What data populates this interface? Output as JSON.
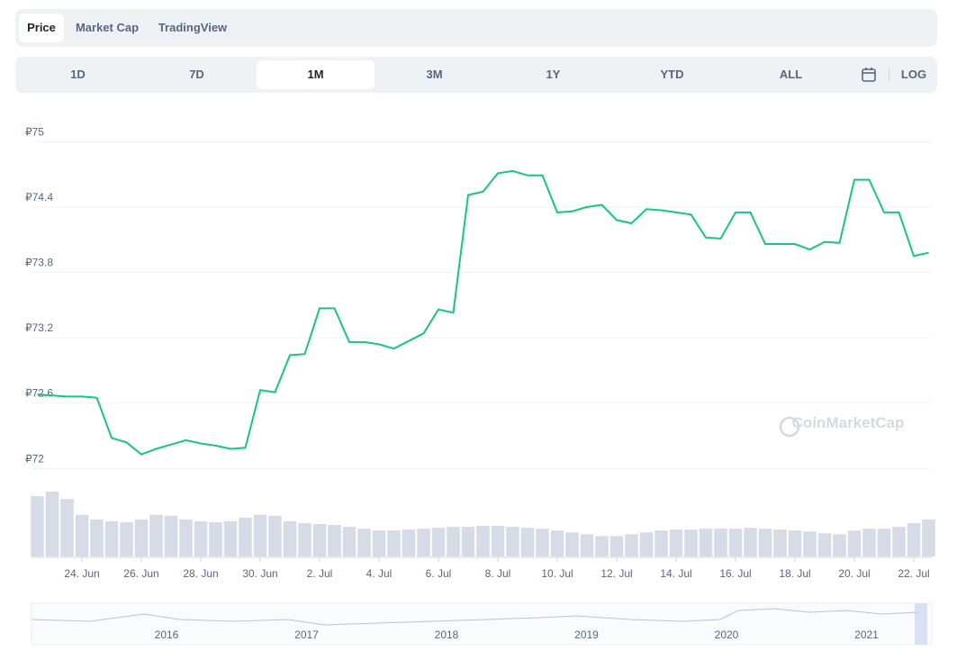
{
  "tabs": [
    "Price",
    "Market Cap",
    "TradingView"
  ],
  "ranges": [
    "1D",
    "7D",
    "1M",
    "3M",
    "1Y",
    "YTD",
    "ALL"
  ],
  "log_button": "LOG",
  "watermark": "CoinMarketCap",
  "navigator": {
    "labels": [
      "2016",
      "2017",
      "2018",
      "2019",
      "2020",
      "2021"
    ]
  },
  "chart_data": {
    "type": "line",
    "color": "#16c784",
    "grid": true,
    "categories": [
      null,
      null,
      null,
      "24. Jun",
      null,
      null,
      null,
      "26. Jun",
      null,
      null,
      null,
      "28. Jun",
      null,
      null,
      null,
      "30. Jun",
      null,
      null,
      null,
      "2. Jul",
      null,
      null,
      null,
      "4. Jul",
      null,
      null,
      null,
      "6. Jul",
      null,
      null,
      null,
      "8. Jul",
      null,
      null,
      null,
      "10. Jul",
      null,
      null,
      null,
      "12. Jul",
      null,
      null,
      null,
      "14. Jul",
      null,
      null,
      null,
      "16. Jul",
      null,
      null,
      null,
      "18. Jul",
      null,
      null,
      null,
      "20. Jul",
      null,
      null,
      null,
      "22. Jul",
      null
    ],
    "values": [
      72.68,
      72.67,
      72.66,
      72.66,
      72.65,
      72.28,
      72.24,
      72.13,
      72.18,
      72.22,
      72.26,
      72.23,
      72.21,
      72.18,
      72.19,
      72.72,
      72.7,
      73.04,
      73.05,
      73.47,
      73.47,
      73.16,
      73.16,
      73.14,
      73.1,
      73.17,
      73.24,
      73.46,
      73.43,
      74.51,
      74.54,
      74.71,
      74.73,
      74.69,
      74.69,
      74.35,
      74.36,
      74.4,
      74.42,
      74.28,
      74.25,
      74.38,
      74.37,
      74.35,
      74.33,
      74.12,
      74.11,
      74.35,
      74.35,
      74.06,
      74.06,
      74.06,
      74.01,
      74.08,
      74.07,
      74.65,
      74.65,
      74.35,
      74.35,
      73.95,
      73.98
    ],
    "volume": [
      65,
      70,
      62,
      45,
      40,
      38,
      37,
      40,
      45,
      44,
      40,
      38,
      37,
      38,
      42,
      45,
      44,
      38,
      36,
      35,
      34,
      32,
      30,
      28,
      28,
      29,
      30,
      31,
      32,
      32,
      33,
      33,
      32,
      31,
      30,
      28,
      26,
      24,
      22,
      22,
      24,
      26,
      28,
      29,
      29,
      30,
      30,
      30,
      31,
      30,
      29,
      28,
      27,
      25,
      24,
      28,
      30,
      30,
      32,
      36,
      40
    ],
    "ylim": [
      71.92,
      75.06
    ],
    "yticks": [
      {
        "value": 72,
        "label": "₽72"
      },
      {
        "value": 72.6,
        "label": "₽72.6"
      },
      {
        "value": 73.2,
        "label": "₽73.2"
      },
      {
        "value": 73.8,
        "label": "₽73.8"
      },
      {
        "value": 74.4,
        "label": "₽74.4"
      },
      {
        "value": 75,
        "label": "₽75"
      }
    ]
  }
}
